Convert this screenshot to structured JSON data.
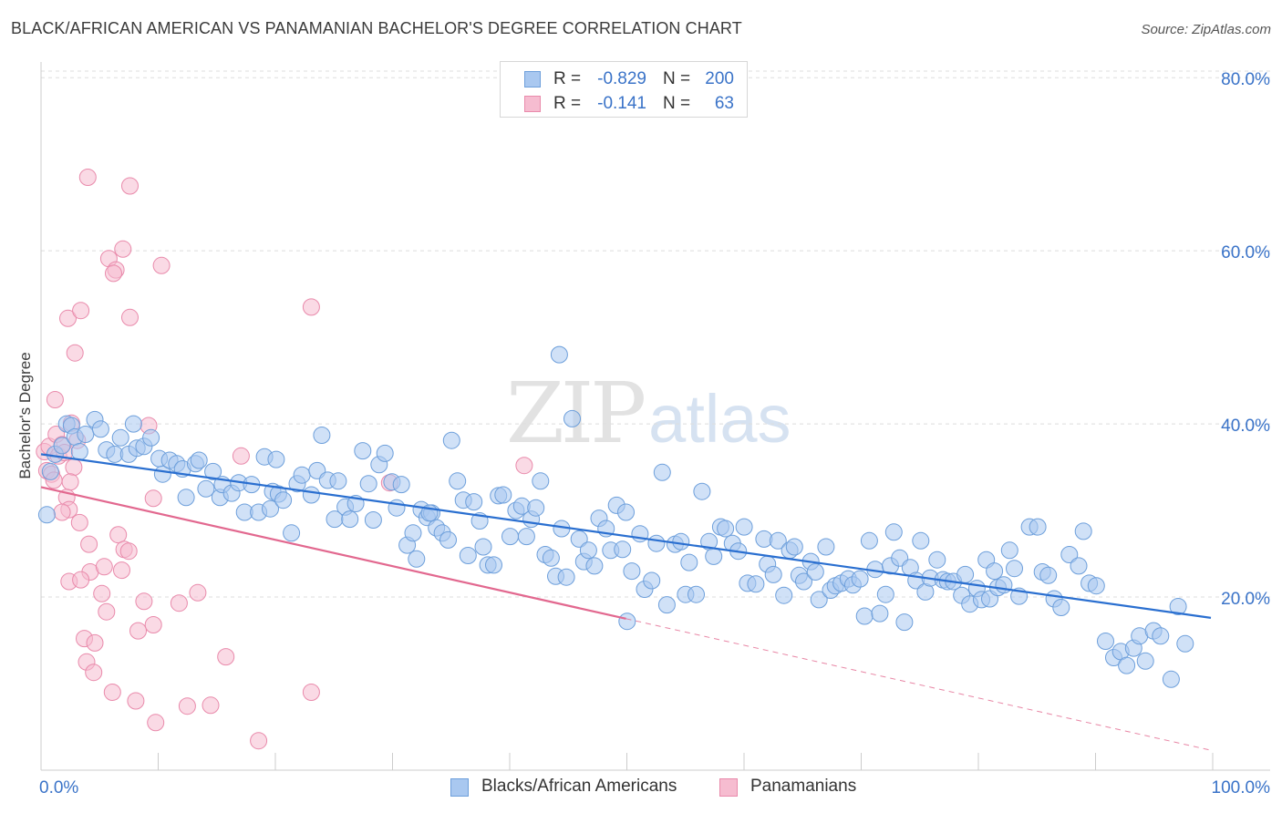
{
  "header": {
    "title": "BLACK/AFRICAN AMERICAN VS PANAMANIAN BACHELOR'S DEGREE CORRELATION CHART",
    "source": "Source: ZipAtlas.com"
  },
  "watermark": {
    "part1": "ZIP",
    "part2": "atlas"
  },
  "legend_top": [
    {
      "r_label": "R =",
      "r_value": "-0.829",
      "n_label": "N =",
      "n_value": "200"
    },
    {
      "r_label": "R =",
      "r_value": "-0.141",
      "n_label": "N =",
      "n_value": "63"
    }
  ],
  "legend_bottom": [
    {
      "label": "Blacks/African Americans"
    },
    {
      "label": "Panamanians"
    }
  ],
  "colors": {
    "blue_fill": "#a9c8f0",
    "blue_stroke": "#6d9fdb",
    "blue_line": "#2a6fd0",
    "pink_fill": "#f6bcd0",
    "pink_stroke": "#e98aab",
    "pink_line": "#e2688f",
    "tick_text": "#3a73c8"
  },
  "chart_data": {
    "type": "scatter",
    "title": "BLACK/AFRICAN AMERICAN VS PANAMANIAN BACHELOR'S DEGREE CORRELATION CHART",
    "xlabel": "",
    "ylabel": "Bachelor's Degree",
    "xlim": [
      0,
      100
    ],
    "ylim": [
      0,
      81.5
    ],
    "x_tick_labels": [
      {
        "x": 0,
        "label": "0.0%"
      },
      {
        "x": 100,
        "label": "100.0%"
      }
    ],
    "y_ticks": [
      {
        "y": 20,
        "label": "20.0%"
      },
      {
        "y": 40,
        "label": "40.0%"
      },
      {
        "y": 60,
        "label": "60.0%"
      },
      {
        "y": 80,
        "label": "80.0%"
      }
    ],
    "grid": true,
    "series": [
      {
        "name": "Blacks/African Americans",
        "color": "#a9c8f0",
        "points": [
          [
            0.5,
            29.5
          ],
          [
            0.8,
            34.5
          ],
          [
            1.2,
            36.5
          ],
          [
            1.8,
            37.5
          ],
          [
            2.2,
            40
          ],
          [
            2.6,
            39.8
          ],
          [
            2.9,
            38.5
          ],
          [
            3.3,
            36.8
          ],
          [
            3.8,
            38.8
          ],
          [
            4.6,
            40.5
          ],
          [
            5.1,
            39.4
          ],
          [
            5.6,
            37
          ],
          [
            6.3,
            36.5
          ],
          [
            6.8,
            38.4
          ],
          [
            7.5,
            36.5
          ],
          [
            7.9,
            40
          ],
          [
            8.2,
            37.2
          ],
          [
            8.8,
            37.4
          ],
          [
            9.4,
            38.4
          ],
          [
            10.1,
            36
          ],
          [
            10.4,
            34.2
          ],
          [
            11,
            35.8
          ],
          [
            11.6,
            35.4
          ],
          [
            12.1,
            34.8
          ],
          [
            12.4,
            31.5
          ],
          [
            13.2,
            35.4
          ],
          [
            13.5,
            35.8
          ],
          [
            14.1,
            32.5
          ],
          [
            14.7,
            34.5
          ],
          [
            15.3,
            31.5
          ],
          [
            15.5,
            33
          ],
          [
            16.3,
            32
          ],
          [
            16.9,
            33.2
          ],
          [
            17.4,
            29.8
          ],
          [
            18,
            33
          ],
          [
            18.6,
            29.8
          ],
          [
            19.1,
            36.2
          ],
          [
            19.6,
            30.2
          ],
          [
            19.8,
            32.2
          ],
          [
            20.3,
            31.9
          ],
          [
            20.7,
            31.2
          ],
          [
            21.4,
            27.4
          ],
          [
            21.9,
            33.1
          ],
          [
            22.3,
            34.1
          ],
          [
            23.1,
            31.8
          ],
          [
            23.6,
            34.6
          ],
          [
            24,
            38.7
          ],
          [
            24.5,
            33.5
          ],
          [
            25.1,
            29
          ],
          [
            25.4,
            33.4
          ],
          [
            26,
            30.4
          ],
          [
            26.4,
            29
          ],
          [
            26.9,
            30.8
          ],
          [
            27.5,
            36.9
          ],
          [
            28,
            33.1
          ],
          [
            28.4,
            28.9
          ],
          [
            28.9,
            35.3
          ],
          [
            29.4,
            36.6
          ],
          [
            30,
            33.3
          ],
          [
            30.4,
            30.3
          ],
          [
            30.8,
            33
          ],
          [
            31.3,
            26
          ],
          [
            31.8,
            27.4
          ],
          [
            32.1,
            24.4
          ],
          [
            32.5,
            30.1
          ],
          [
            33,
            29.2
          ],
          [
            33.4,
            29.7
          ],
          [
            33.8,
            28
          ],
          [
            34.3,
            27.4
          ],
          [
            34.8,
            26.6
          ],
          [
            35.1,
            38.1
          ],
          [
            35.6,
            33.4
          ],
          [
            36.1,
            31.2
          ],
          [
            36.5,
            24.8
          ],
          [
            37,
            31
          ],
          [
            37.5,
            28.8
          ],
          [
            37.8,
            25.8
          ],
          [
            38.2,
            23.7
          ],
          [
            38.7,
            23.7
          ],
          [
            39.1,
            31.7
          ],
          [
            39.5,
            31.8
          ],
          [
            40.1,
            27
          ],
          [
            40.6,
            30
          ],
          [
            41.1,
            30.5
          ],
          [
            41.5,
            27
          ],
          [
            41.9,
            29
          ],
          [
            42.3,
            30.3
          ],
          [
            42.7,
            33.4
          ],
          [
            43.1,
            24.9
          ],
          [
            43.6,
            24.5
          ],
          [
            44,
            22.4
          ],
          [
            44.5,
            27.9
          ],
          [
            44.9,
            22.3
          ],
          [
            45.4,
            40.6
          ],
          [
            46,
            26.7
          ],
          [
            46.4,
            24.1
          ],
          [
            46.8,
            25.4
          ],
          [
            47.3,
            23.6
          ],
          [
            47.7,
            29.1
          ],
          [
            48.3,
            27.9
          ],
          [
            48.7,
            25.4
          ],
          [
            49.2,
            30.6
          ],
          [
            49.7,
            25.5
          ],
          [
            50,
            29.8
          ],
          [
            50.5,
            23
          ],
          [
            51.2,
            27.3
          ],
          [
            51.6,
            20.9
          ],
          [
            52.2,
            21.9
          ],
          [
            52.6,
            26.2
          ],
          [
            53.1,
            34.4
          ],
          [
            53.5,
            19.1
          ],
          [
            54.2,
            26.1
          ],
          [
            54.7,
            26.4
          ],
          [
            55.1,
            20.3
          ],
          [
            55.4,
            24
          ],
          [
            56,
            20.3
          ],
          [
            56.5,
            32.2
          ],
          [
            57.1,
            26.4
          ],
          [
            57.5,
            24.7
          ],
          [
            58.1,
            28.1
          ],
          [
            58.5,
            27.9
          ],
          [
            59.1,
            26.2
          ],
          [
            59.6,
            25.3
          ],
          [
            60.1,
            28.1
          ],
          [
            60.4,
            21.6
          ],
          [
            61.1,
            21.5
          ],
          [
            61.8,
            26.7
          ],
          [
            62.1,
            23.8
          ],
          [
            62.6,
            22.6
          ],
          [
            63,
            26.5
          ],
          [
            63.5,
            20.2
          ],
          [
            64,
            25.4
          ],
          [
            64.4,
            25.8
          ],
          [
            64.8,
            22.5
          ],
          [
            65.2,
            21.8
          ],
          [
            65.8,
            24.1
          ],
          [
            66.2,
            22.9
          ],
          [
            66.5,
            19.7
          ],
          [
            67.1,
            25.8
          ],
          [
            67.5,
            20.8
          ],
          [
            67.9,
            21.3
          ],
          [
            68.4,
            21.6
          ],
          [
            69,
            22.1
          ],
          [
            69.4,
            21.4
          ],
          [
            70,
            22.1
          ],
          [
            70.4,
            17.8
          ],
          [
            70.8,
            26.5
          ],
          [
            71.3,
            23.2
          ],
          [
            71.7,
            18.1
          ],
          [
            72.2,
            20.3
          ],
          [
            72.6,
            23.6
          ],
          [
            72.9,
            27.5
          ],
          [
            73.4,
            24.5
          ],
          [
            73.8,
            17.1
          ],
          [
            74.3,
            23.4
          ],
          [
            74.8,
            21.9
          ],
          [
            75.2,
            26.5
          ],
          [
            75.6,
            20.6
          ],
          [
            76,
            22.2
          ],
          [
            76.6,
            24.3
          ],
          [
            77.1,
            22
          ],
          [
            77.5,
            21.8
          ],
          [
            78,
            21.8
          ],
          [
            78.7,
            20.2
          ],
          [
            79,
            22.6
          ],
          [
            79.4,
            19.2
          ],
          [
            80,
            21
          ],
          [
            80.4,
            19.7
          ],
          [
            80.8,
            24.3
          ],
          [
            81.1,
            19.8
          ],
          [
            81.5,
            23
          ],
          [
            81.8,
            21.1
          ],
          [
            82.3,
            21.4
          ],
          [
            82.8,
            25.4
          ],
          [
            83.2,
            23.3
          ],
          [
            83.6,
            20.1
          ],
          [
            84.5,
            28.1
          ],
          [
            85.2,
            28.1
          ],
          [
            85.6,
            22.9
          ],
          [
            86.1,
            22.5
          ],
          [
            86.6,
            19.8
          ],
          [
            87.2,
            18.8
          ],
          [
            87.9,
            24.9
          ],
          [
            88.7,
            23.6
          ],
          [
            89.1,
            27.6
          ],
          [
            89.6,
            21.6
          ],
          [
            90.2,
            21.3
          ],
          [
            91,
            14.9
          ],
          [
            91.7,
            13
          ],
          [
            92.3,
            13.7
          ],
          [
            92.8,
            12.1
          ],
          [
            93.4,
            14.1
          ],
          [
            93.9,
            15.5
          ],
          [
            94.4,
            12.6
          ],
          [
            95.1,
            16.1
          ],
          [
            95.7,
            15.5
          ],
          [
            96.6,
            10.5
          ],
          [
            97.2,
            18.9
          ],
          [
            97.8,
            14.6
          ],
          [
            50.1,
            17.2
          ],
          [
            44.3,
            48
          ],
          [
            33.2,
            29.7
          ],
          [
            20.1,
            35.9
          ]
        ]
      },
      {
        "name": "Panamanians",
        "color": "#f6bcd0",
        "points": [
          [
            0.3,
            36.8
          ],
          [
            0.5,
            34.6
          ],
          [
            0.7,
            37.4
          ],
          [
            0.9,
            34.2
          ],
          [
            1.1,
            33.5
          ],
          [
            1.3,
            38.8
          ],
          [
            1.5,
            36.3
          ],
          [
            1.8,
            37.6
          ],
          [
            2,
            36.7
          ],
          [
            1.2,
            42.8
          ],
          [
            2.3,
            52.2
          ],
          [
            2.9,
            48.2
          ],
          [
            3.4,
            53.1
          ],
          [
            2.6,
            40.1
          ],
          [
            3.1,
            38.1
          ],
          [
            2.8,
            35
          ],
          [
            2.5,
            33.3
          ],
          [
            2.2,
            31.5
          ],
          [
            2.4,
            30.1
          ],
          [
            1.8,
            29.8
          ],
          [
            3.3,
            28.6
          ],
          [
            4.1,
            26.1
          ],
          [
            4.2,
            22.9
          ],
          [
            2.4,
            21.8
          ],
          [
            3.4,
            22
          ],
          [
            3.7,
            15.2
          ],
          [
            4.6,
            14.7
          ],
          [
            3.9,
            12.5
          ],
          [
            4.5,
            11.3
          ],
          [
            5.6,
            18.3
          ],
          [
            5.4,
            23.5
          ],
          [
            5.2,
            20.4
          ],
          [
            6.6,
            27.2
          ],
          [
            6.9,
            23.1
          ],
          [
            7.1,
            25.5
          ],
          [
            7.5,
            25.3
          ],
          [
            8.3,
            16.1
          ],
          [
            8.8,
            19.5
          ],
          [
            9.6,
            16.8
          ],
          [
            9.8,
            5.5
          ],
          [
            10.3,
            58.3
          ],
          [
            7.6,
            67.5
          ],
          [
            4,
            68.5
          ],
          [
            5.8,
            59.1
          ],
          [
            6.4,
            57.8
          ],
          [
            6.2,
            57.4
          ],
          [
            7,
            60.2
          ],
          [
            7.6,
            52.3
          ],
          [
            9.2,
            39.8
          ],
          [
            9.6,
            31.4
          ],
          [
            11.8,
            19.3
          ],
          [
            12.5,
            7.4
          ],
          [
            13.4,
            20.5
          ],
          [
            14.5,
            7.5
          ],
          [
            15.8,
            13.1
          ],
          [
            17.1,
            36.3
          ],
          [
            18.6,
            3.4
          ],
          [
            23.1,
            53.5
          ],
          [
            23.1,
            9
          ],
          [
            29.8,
            33.2
          ],
          [
            41.3,
            35.2
          ],
          [
            6.1,
            9
          ],
          [
            8.1,
            8
          ]
        ]
      }
    ],
    "trend_lines": [
      {
        "series": "Blacks/African Americans",
        "x": [
          0,
          100
        ],
        "y": [
          36.5,
          17.6
        ],
        "style": "solid"
      },
      {
        "series": "Panamanians",
        "x": [
          0,
          50
        ],
        "y": [
          32.7,
          17.5
        ],
        "style": "solid"
      },
      {
        "series": "Panamanians",
        "x": [
          50,
          100
        ],
        "y": [
          17.5,
          2.3
        ],
        "style": "dashed"
      }
    ]
  }
}
